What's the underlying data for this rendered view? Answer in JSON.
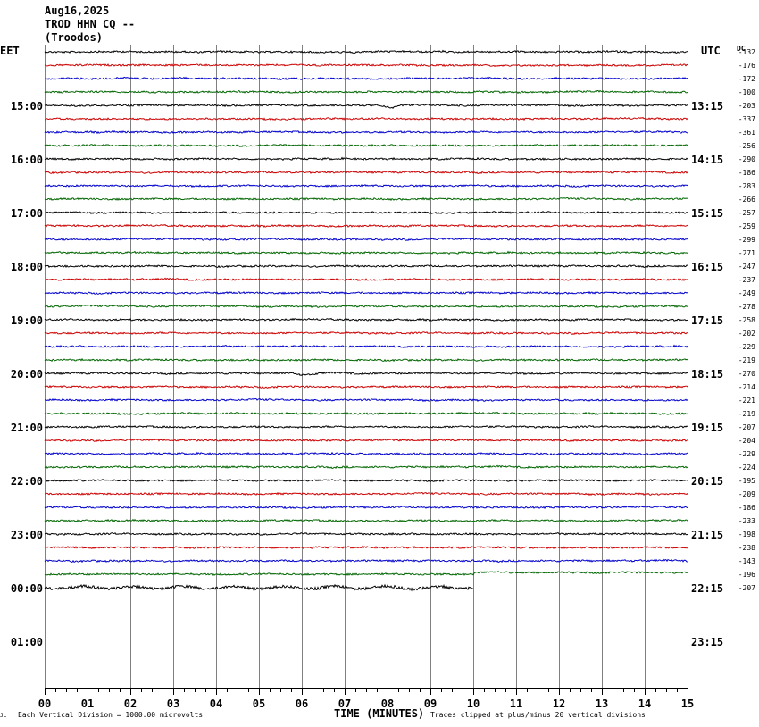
{
  "header": {
    "date": "Aug16,2025",
    "station": "TROD HHN CQ --",
    "site": "(Troodos)"
  },
  "left_zone_label": "EET",
  "right_zone_label": "UTC",
  "dc_label": "DC",
  "footer": {
    "scale_note": "Each Vertical Division = 1000.00 microvolts",
    "axis_title": "TIME (MINUTES)",
    "clip_note": "Traces clipped at plus/minus 20 vertical divisions",
    "corner_mark": "JL"
  },
  "colors": {
    "trace_cycle": [
      "#000000",
      "#cc0000",
      "#0000cc",
      "#006600"
    ],
    "grid": "#808080",
    "background": "#ffffff"
  },
  "chart_data": {
    "type": "line",
    "description_kind": "helicorder",
    "x_ticks": [
      "00",
      "01",
      "02",
      "03",
      "04",
      "05",
      "06",
      "07",
      "08",
      "09",
      "10",
      "11",
      "12",
      "13",
      "14",
      "15"
    ],
    "x_range_minutes": [
      0,
      15
    ],
    "left_hour_labels": [
      "15:00",
      "16:00",
      "17:00",
      "18:00",
      "19:00",
      "20:00",
      "21:00",
      "22:00",
      "23:00",
      "00:00",
      "01:00"
    ],
    "right_hour_labels": [
      "13:15",
      "14:15",
      "15:15",
      "16:15",
      "17:15",
      "18:15",
      "19:15",
      "20:15",
      "21:15",
      "22:15",
      "23:15"
    ],
    "dc_offsets": [
      "-132",
      "-176",
      "-172",
      "-100",
      "-203",
      "-337",
      "-361",
      "-256",
      "-290",
      "-186",
      "-283",
      "-266",
      "-257",
      "-259",
      "-299",
      "-271",
      "-247",
      "-237",
      "-249",
      "-278",
      "-258",
      "-202",
      "-229",
      "-219",
      "-270",
      "-214",
      "-221",
      "-219",
      "-207",
      "-204",
      "-229",
      "-224",
      "-195",
      "-209",
      "-186",
      "-233",
      "-198",
      "-238",
      "-143",
      "-196",
      "-207"
    ],
    "trace_count": 41,
    "last_trace_end_minute": 10,
    "green_last_full_step_minute": 10
  }
}
